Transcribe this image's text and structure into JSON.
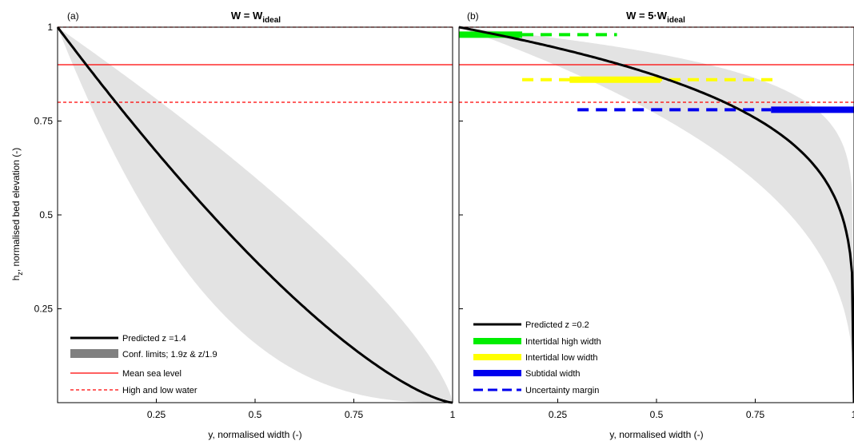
{
  "figure": {
    "ylabel_main": "h",
    "ylabel_sub": "z",
    "ylabel_rest": ", normalised bed elevation (-)",
    "xlabel": "y, normalised width (-)"
  },
  "colors": {
    "band": "#e3e3e3",
    "curve": "#000000",
    "msl": "#ff0000",
    "water": "#ff0000",
    "intertidal_high": "#00ee00",
    "intertidal_low": "#ffff00",
    "subtidal": "#0000ee",
    "conf_legend": "#808080"
  },
  "chart_data": [
    {
      "type": "line",
      "panel_label": "(a)",
      "title_main": "W = W",
      "title_sub": "ideal",
      "xlim": [
        0,
        1
      ],
      "ylim": [
        0,
        1
      ],
      "x_ticks": [
        0.25,
        0.5,
        0.75,
        1
      ],
      "x_tick_labels": [
        "0.25",
        "0.5",
        "0.75",
        "1"
      ],
      "y_ticks": [
        0.25,
        0.5,
        0.75,
        1
      ],
      "y_tick_labels": [
        "0.25",
        "0.5",
        "0.75",
        "1"
      ],
      "grid": false,
      "legend_position": "bottom-left",
      "mean_sea_level": 0.9,
      "high_water": 1.0,
      "low_water": 0.8,
      "series": [
        {
          "name": "Predicted z =1.4",
          "kind": "curve",
          "z": 1.4
        },
        {
          "name": "Conf. limits; 1.9z & z/1.9",
          "kind": "band",
          "z_upper": 2.66,
          "z_lower": 0.737
        },
        {
          "name": "Mean sea level",
          "kind": "hline"
        },
        {
          "name": "High and low water",
          "kind": "hline-dashed"
        }
      ]
    },
    {
      "type": "line",
      "panel_label": "(b)",
      "title_main": "W = 5·W",
      "title_sub": "ideal",
      "xlim": [
        0,
        1
      ],
      "ylim": [
        0,
        1
      ],
      "x_ticks": [
        0.25,
        0.5,
        0.75,
        1
      ],
      "x_tick_labels": [
        "0.25",
        "0.5",
        "0.75",
        "1"
      ],
      "y_ticks": [
        0.25,
        0.5,
        0.75,
        1
      ],
      "grid": false,
      "legend_position": "bottom-left",
      "mean_sea_level": 0.9,
      "high_water": 1.0,
      "low_water": 0.8,
      "series": [
        {
          "name": "Predicted z =0.2",
          "kind": "curve",
          "z": 0.2
        },
        {
          "name": "Intertidal high width",
          "kind": "width",
          "y": 0.98,
          "solid": [
            0,
            0.16
          ],
          "dashed": [
            0.16,
            0.4
          ]
        },
        {
          "name": "Intertidal low width",
          "kind": "width",
          "y": 0.86,
          "solid": [
            0.28,
            0.51
          ],
          "dashed": [
            0.16,
            0.8
          ]
        },
        {
          "name": "Subtidal width",
          "kind": "width",
          "y": 0.78,
          "solid": [
            0.79,
            1.0
          ],
          "dashed": [
            0.3,
            0.79
          ]
        },
        {
          "name": "Uncertainty margin",
          "kind": "dashed-legend"
        }
      ]
    }
  ]
}
